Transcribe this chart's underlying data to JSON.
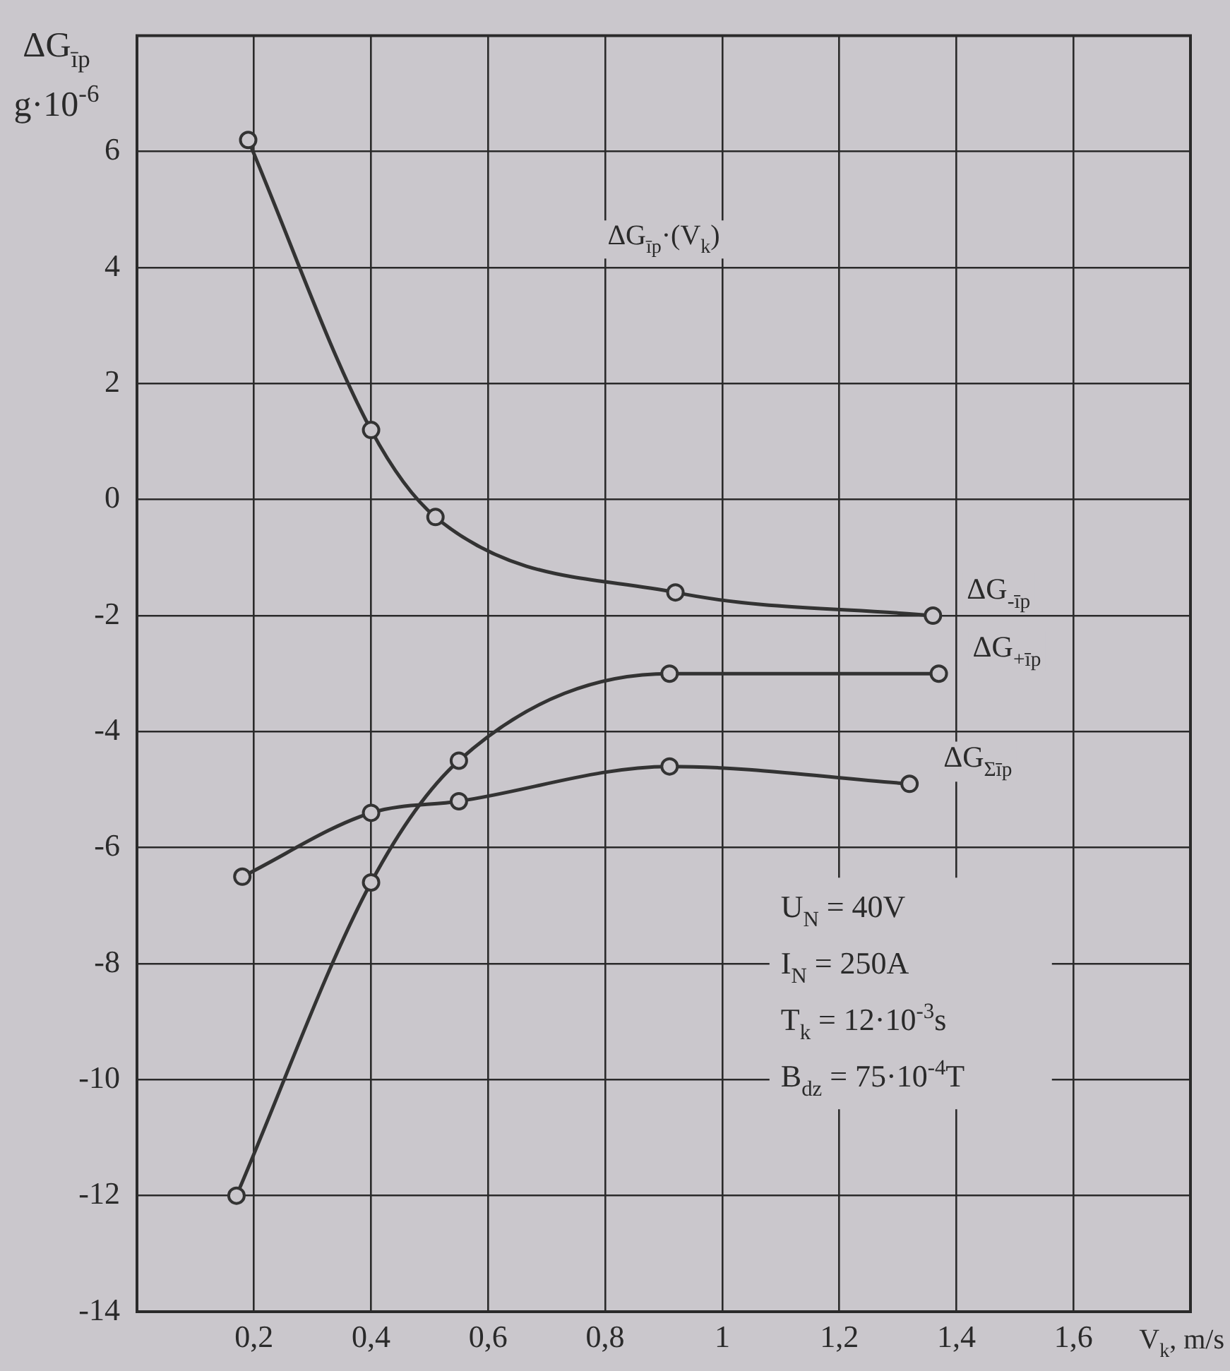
{
  "chart_data": {
    "type": "line",
    "title": "ΔG$_{īp}$·(V$_{k}$)",
    "xlabel": "V$_{k}$, m/s",
    "ylabel": "ΔG$_{īp}$\ng·10$^{-6}$",
    "xlim": [
      0,
      1.8
    ],
    "ylim": [
      -14,
      8
    ],
    "xticks": [
      {
        "value": 0.2,
        "label": "0,2"
      },
      {
        "value": 0.4,
        "label": "0,4"
      },
      {
        "value": 0.6,
        "label": "0,6"
      },
      {
        "value": 0.8,
        "label": "0,8"
      },
      1,
      {
        "value": 1.2,
        "label": "1,2"
      },
      {
        "value": 1.4,
        "label": "1,4"
      },
      {
        "value": 1.6,
        "label": "1,6"
      }
    ],
    "yticks": [
      -14,
      -12,
      -10,
      -8,
      -6,
      -4,
      -2,
      0,
      2,
      4,
      6
    ],
    "grid": true,
    "legend": false,
    "marker": "circle",
    "line_style": "solid",
    "series": [
      {
        "name": "ΔG$_{-īp}$",
        "color": "#333333",
        "x": [
          0.19,
          0.4,
          0.51,
          0.92,
          1.36
        ],
        "values": [
          6.2,
          1.2,
          -0.3,
          -1.6,
          -2
        ]
      },
      {
        "name": "ΔG$_{+īp}$",
        "color": "#333333",
        "x": [
          0.17,
          0.4,
          0.55,
          0.91,
          1.37
        ],
        "values": [
          -12,
          -6.6,
          -4.5,
          -3,
          -3
        ]
      },
      {
        "name": "ΔG$_{Σīp}$",
        "color": "#333333",
        "x": [
          0.18,
          0.4,
          0.55,
          0.91,
          1.32
        ],
        "values": [
          -6.5,
          -5.4,
          -5.2,
          -4.6,
          -4.9
        ]
      }
    ],
    "annotations": [
      "U$_{N}$ = 40V",
      "I$_{N}$ = 250A",
      "T$_{k}$ = 12·10$^{-3}$s",
      "B$_{dz}$ = 75·10$^{-4}$T"
    ]
  }
}
